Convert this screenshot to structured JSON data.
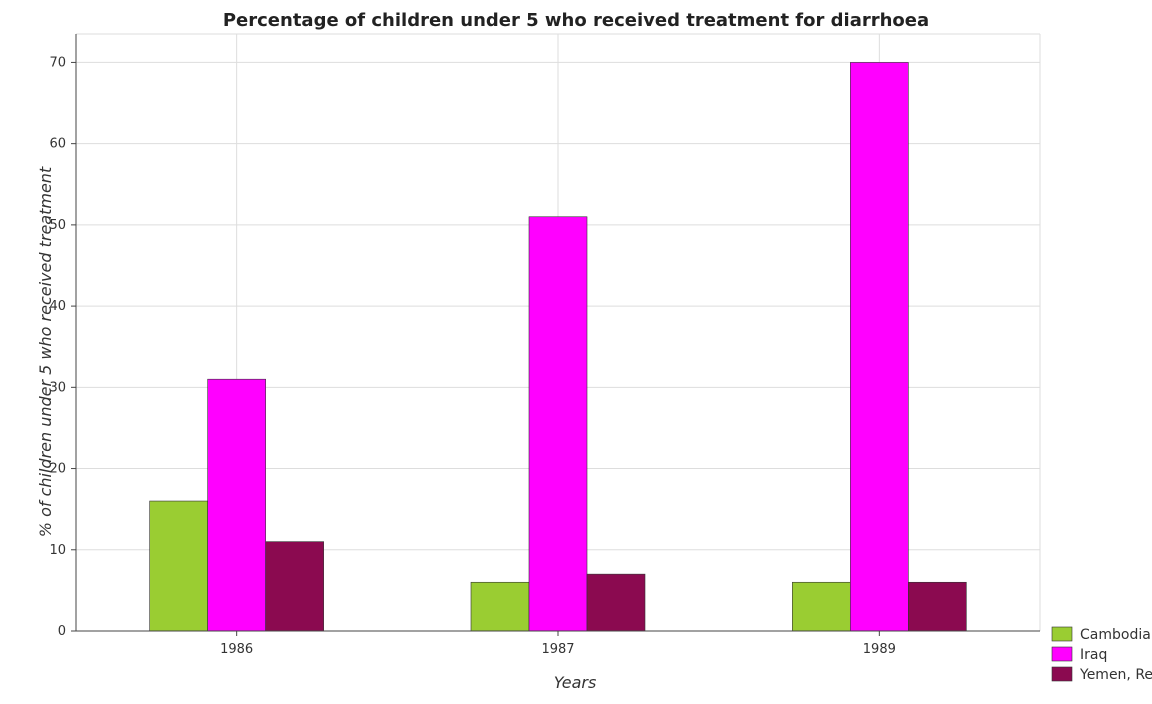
{
  "chart_data": {
    "type": "bar",
    "title": "Percentage of children under 5 who received treatment for diarrhoea",
    "xlabel": "Years",
    "ylabel": "% of children under 5 who received treatment",
    "categories": [
      "1986",
      "1987",
      "1989"
    ],
    "series": [
      {
        "name": "Cambodia",
        "color": "#9acd32",
        "values": [
          16,
          6,
          6
        ]
      },
      {
        "name": "Iraq",
        "color": "#ff00ff",
        "values": [
          31,
          51,
          70
        ]
      },
      {
        "name": "Yemen, Rep.",
        "color": "#8b0a50",
        "values": [
          11,
          7,
          6
        ]
      }
    ],
    "ylim": [
      0,
      73.5
    ],
    "yticks": [
      0,
      10,
      20,
      30,
      40,
      50,
      60,
      70
    ],
    "grid": true,
    "legend_position": "bottom-right"
  }
}
